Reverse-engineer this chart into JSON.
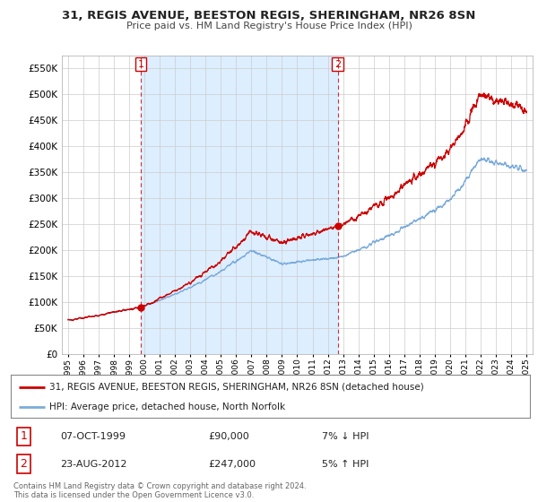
{
  "title": "31, REGIS AVENUE, BEESTON REGIS, SHERINGHAM, NR26 8SN",
  "subtitle": "Price paid vs. HM Land Registry's House Price Index (HPI)",
  "legend_line1": "31, REGIS AVENUE, BEESTON REGIS, SHERINGHAM, NR26 8SN (detached house)",
  "legend_line2": "HPI: Average price, detached house, North Norfolk",
  "sale1_label": "1",
  "sale1_date": "07-OCT-1999",
  "sale1_price": "£90,000",
  "sale1_hpi": "7% ↓ HPI",
  "sale2_label": "2",
  "sale2_date": "23-AUG-2012",
  "sale2_price": "£247,000",
  "sale2_hpi": "5% ↑ HPI",
  "footnote": "Contains HM Land Registry data © Crown copyright and database right 2024.\nThis data is licensed under the Open Government Licence v3.0.",
  "hpi_color": "#7aabdb",
  "price_color": "#cc0000",
  "sale_marker_color": "#cc0000",
  "background_color": "#ffffff",
  "grid_color": "#cccccc",
  "shade_color": "#ddeeff",
  "ylim": [
    0,
    575000
  ],
  "yticks": [
    0,
    50000,
    100000,
    150000,
    200000,
    250000,
    300000,
    350000,
    400000,
    450000,
    500000,
    550000
  ],
  "sale1_year": 1999.77,
  "sale1_value": 90000,
  "sale2_year": 2012.65,
  "sale2_value": 247000,
  "xmin": 1995,
  "xmax": 2025
}
